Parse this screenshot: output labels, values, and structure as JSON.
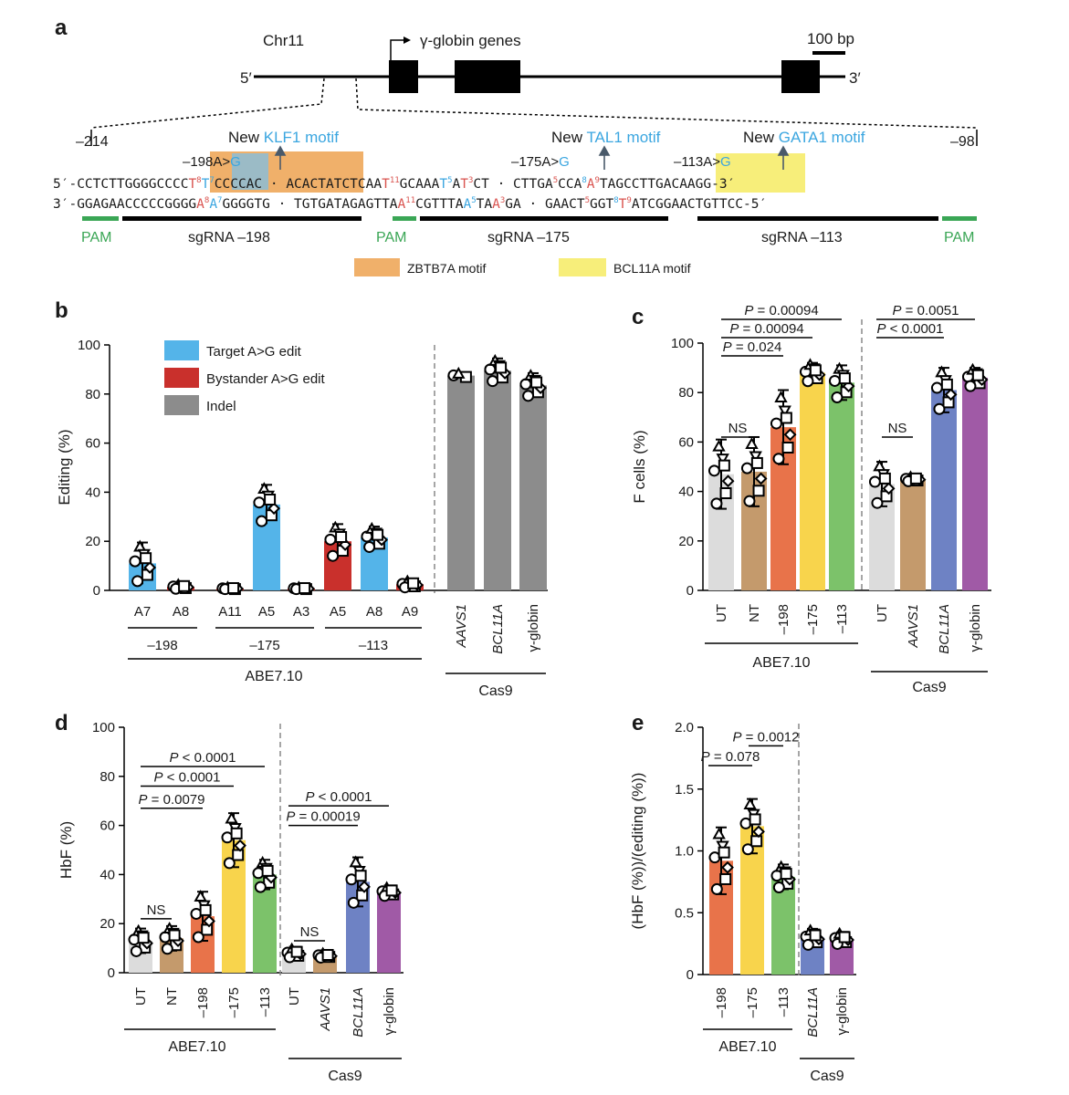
{
  "colors": {
    "target": "#54b4e9",
    "bystander": "#c9302c",
    "indel": "#8c8c8c",
    "ut": "#dcdcdc",
    "nt": "#c49a6c",
    "aavs1": "#c49a6c",
    "e198": "#e8734a",
    "e175": "#f8d44c",
    "e113": "#7cc26a",
    "bcl11a": "#6e82c4",
    "gglobin": "#a05aa6",
    "zbtb7a": "#f0b06a",
    "bcl11a_motif": "#f7ee7a",
    "pam": "#3aa655",
    "blue_text": "#3ba6e0",
    "red_text": "#d9534f"
  },
  "panel_a": {
    "letter": "a",
    "chr": "Chr11",
    "gene_label": "γ-globin genes",
    "scale_label": "100 bp",
    "five_prime": "5′",
    "three_prime": "3′",
    "pos_left": "–214",
    "pos_right": "–98",
    "mut1": {
      "text": "–198A>",
      "g": "G"
    },
    "mut2": {
      "text": "–175A>",
      "g": "G"
    },
    "mut3": {
      "text": "–113A>",
      "g": "G"
    },
    "motif1": {
      "pre": "New ",
      "name": "KLF1 motif"
    },
    "motif2": {
      "pre": "New ",
      "name": "TAL1 motif"
    },
    "motif3": {
      "pre": "New ",
      "name": "GATA1 motif"
    },
    "top_prefix": "5′-",
    "top_suffix": "-3′",
    "bot_prefix": "3′-",
    "bot_suffix": "-5′",
    "top_seq": [
      {
        "t": "CCTCTTGGGG"
      },
      {
        "t": "CCCC"
      },
      {
        "t": "T",
        "c": "red"
      },
      {
        "t": "8",
        "sup": true,
        "c": "red"
      },
      {
        "t": "T",
        "c": "blue"
      },
      {
        "t": "7",
        "sup": true,
        "c": "blue"
      },
      {
        "t": "CCCCAC"
      },
      {
        "t": " · ACACTATCTCAA"
      },
      {
        "t": "T",
        "c": "red"
      },
      {
        "t": "11",
        "sup": true,
        "c": "red"
      },
      {
        "t": "GCAAA"
      },
      {
        "t": "T",
        "c": "blue"
      },
      {
        "t": "5",
        "sup": true,
        "c": "blue"
      },
      {
        "t": "A"
      },
      {
        "t": "T",
        "c": "red"
      },
      {
        "t": "3",
        "sup": true,
        "c": "red"
      },
      {
        "t": "CT"
      },
      {
        "t": " · CTTGA"
      },
      {
        "t": "5",
        "sup": true,
        "c": "red"
      },
      {
        "t": "CCA"
      },
      {
        "t": "8",
        "sup": true,
        "c": "blue"
      },
      {
        "t": "A",
        "c": "red"
      },
      {
        "t": "9",
        "sup": true,
        "c": "red"
      },
      {
        "t": "TAGCCTTGACAAGG"
      }
    ],
    "bot_seq": [
      {
        "t": "GGAGAACCCCC"
      },
      {
        "t": "GGGG"
      },
      {
        "t": "A",
        "c": "red"
      },
      {
        "t": "8",
        "sup": true,
        "c": "red"
      },
      {
        "t": "A",
        "c": "blue"
      },
      {
        "t": "7",
        "sup": true,
        "c": "blue"
      },
      {
        "t": "GGGGTG"
      },
      {
        "t": " · TGTGATAGAGTTA"
      },
      {
        "t": "A",
        "c": "red"
      },
      {
        "t": "11",
        "sup": true,
        "c": "red"
      },
      {
        "t": "CGTTTA"
      },
      {
        "t": "A",
        "c": "blue"
      },
      {
        "t": "5",
        "sup": true,
        "c": "blue"
      },
      {
        "t": "TA"
      },
      {
        "t": "A",
        "c": "red"
      },
      {
        "t": "3",
        "sup": true,
        "c": "red"
      },
      {
        "t": "GA"
      },
      {
        "t": " · GAACT"
      },
      {
        "t": "5",
        "sup": true,
        "c": "red"
      },
      {
        "t": "GGT"
      },
      {
        "t": "8",
        "sup": true,
        "c": "blue"
      },
      {
        "t": "T",
        "c": "red"
      },
      {
        "t": "9",
        "sup": true,
        "c": "red"
      },
      {
        "t": "ATCGGAACTGTTCC"
      }
    ],
    "pam": "PAM",
    "sg1": "sgRNA –198",
    "sg2": "sgRNA –175",
    "sg3": "sgRNA –113",
    "legend_zbtb7a": "ZBTB7A motif",
    "legend_bcl11a": "BCL11A motif"
  },
  "chart_data": [
    {
      "panel": "b",
      "type": "bar",
      "ylabel": "Editing (%)",
      "ylim": [
        0,
        100
      ],
      "yticks": [
        0,
        20,
        40,
        60,
        80,
        100
      ],
      "legend": [
        "Target A>G edit",
        "Bystander A>G edit",
        "Indel"
      ],
      "categories": [
        "A7",
        "A8",
        "A11",
        "A5",
        "A3",
        "A5",
        "A8",
        "A9",
        "AAVS1",
        "BCL11A",
        "γ-globin"
      ],
      "kinds": [
        "target",
        "bystander",
        "bystander",
        "target",
        "bystander",
        "bystander",
        "target",
        "bystander",
        "indel",
        "indel",
        "indel"
      ],
      "values": [
        11,
        1.5,
        0.8,
        35,
        0.8,
        20,
        21.5,
        2.5,
        87.5,
        89.5,
        83.5
      ],
      "error": [
        8.5,
        1,
        0.5,
        8,
        0.5,
        7,
        4.5,
        1.5,
        1,
        5,
        5
      ],
      "groups": [
        "–198",
        "–175",
        "–113"
      ],
      "editor": "ABE7.10",
      "nuclease": "Cas9"
    },
    {
      "panel": "c",
      "type": "bar",
      "ylabel": "F cells (%)",
      "ylim": [
        0,
        100
      ],
      "yticks": [
        0,
        20,
        40,
        60,
        80,
        100
      ],
      "categories": [
        "UT",
        "NT",
        "–198",
        "–175",
        "–113",
        "UT",
        "AAVS1",
        "BCL11A",
        "γ-globin"
      ],
      "values": [
        47,
        48,
        66,
        88,
        84,
        43,
        45,
        81,
        86
      ],
      "error": [
        14,
        14,
        15,
        4,
        7,
        9,
        1,
        9,
        4
      ],
      "stats": [
        "NS",
        "P = 0.024",
        "P = 0.00094",
        "P = 0.00094",
        "NS",
        "P < 0.0001",
        "P = 0.0051"
      ],
      "editor": "ABE7.10",
      "nuclease": "Cas9"
    },
    {
      "panel": "d",
      "type": "bar",
      "ylabel": "HbF (%)",
      "ylim": [
        0,
        100
      ],
      "yticks": [
        0,
        20,
        40,
        60,
        80,
        100
      ],
      "categories": [
        "UT",
        "NT",
        "–198",
        "–175",
        "–113",
        "UT",
        "AAVS1",
        "BCL11A",
        "γ-globin"
      ],
      "values": [
        13,
        14,
        23,
        54,
        40,
        8,
        7,
        37,
        33
      ],
      "error": [
        5,
        5,
        10,
        11,
        6,
        2,
        1,
        10,
        2
      ],
      "stats": [
        "NS",
        "P = 0.0079",
        "P < 0.0001",
        "P < 0.0001",
        "NS",
        "P = 0.00019",
        "P < 0.0001"
      ],
      "editor": "ABE7.10",
      "nuclease": "Cas9"
    },
    {
      "panel": "e",
      "type": "bar",
      "ylabel": "(HbF (%))/(editing (%))",
      "ylim": [
        0,
        2.0
      ],
      "yticks": [
        0,
        0.5,
        1.0,
        1.5,
        2.0
      ],
      "ytick_labels": [
        "0",
        "0.5",
        "1.0",
        "1.5",
        "2.0"
      ],
      "categories": [
        "–198",
        "–175",
        "–113",
        "BCL11A",
        "γ-globin"
      ],
      "values": [
        0.92,
        1.2,
        0.79,
        0.3,
        0.29
      ],
      "error": [
        0.27,
        0.22,
        0.1,
        0.07,
        0.05
      ],
      "stats": [
        "P = 0.078",
        "P = 0.0012"
      ],
      "editor": "ABE7.10",
      "nuclease": "Cas9"
    }
  ],
  "panel_letters": [
    "b",
    "c",
    "d",
    "e"
  ]
}
